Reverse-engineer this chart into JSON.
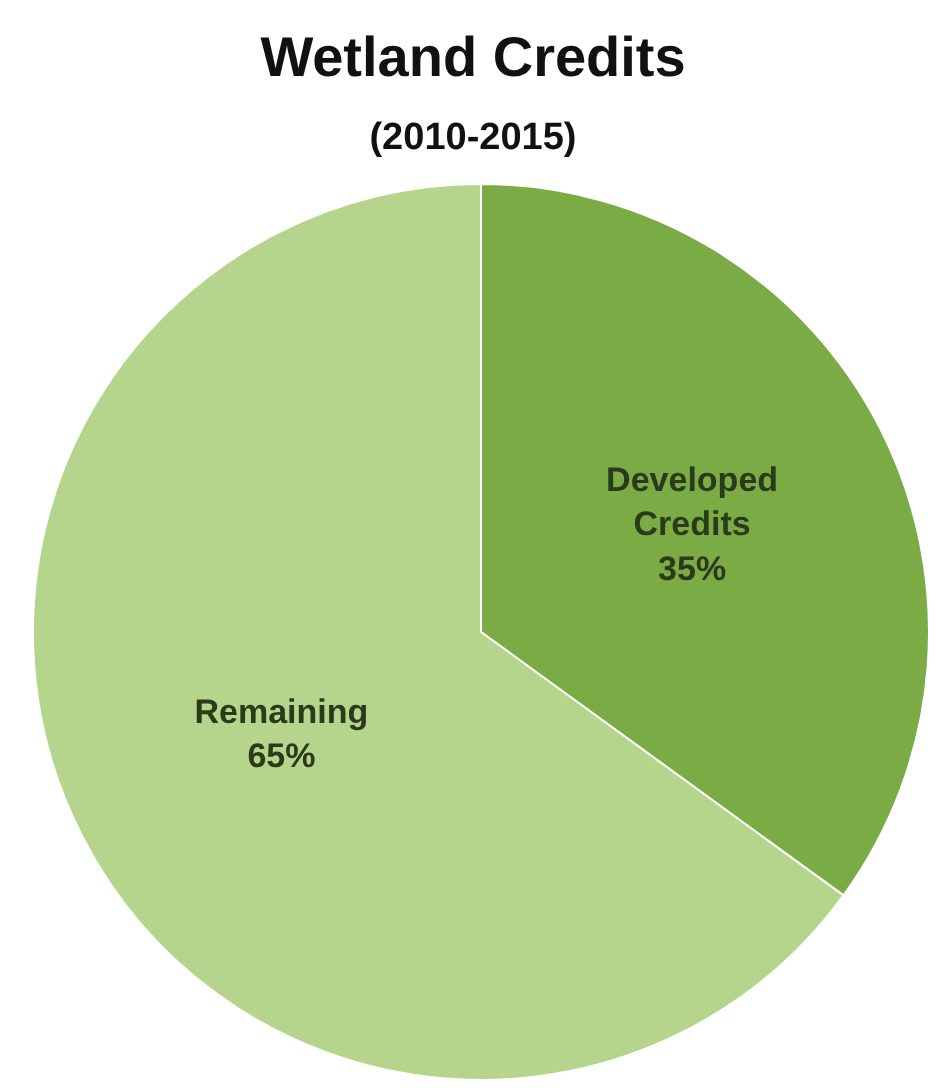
{
  "chart_data": {
    "type": "pie",
    "title": "Wetland Credits",
    "subtitle": "(2010-2015)",
    "categories": [
      "Developed Credits",
      "Remaining"
    ],
    "values": [
      35,
      65
    ],
    "value_labels": [
      "35%",
      "65%"
    ],
    "colors": [
      "#7aab45",
      "#b6d58c"
    ],
    "legend": false
  }
}
